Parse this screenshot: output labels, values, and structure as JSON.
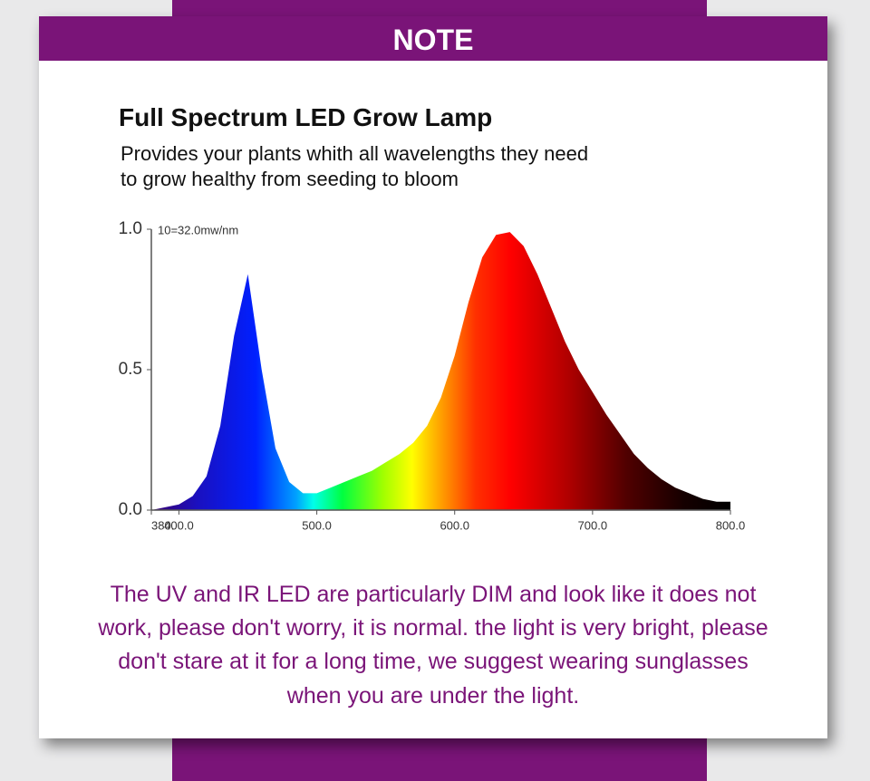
{
  "header": {
    "title": "NOTE"
  },
  "intro": {
    "title": "Full Spectrum LED Grow Lamp",
    "lines": [
      "Provides your plants whith all wavelengths they need",
      "to grow healthy from seeding to bloom"
    ]
  },
  "chart_data": {
    "type": "area",
    "annotation": "10=32.0mw/nm",
    "x": [
      380,
      390,
      400,
      410,
      420,
      430,
      440,
      450,
      460,
      470,
      480,
      490,
      500,
      510,
      520,
      530,
      540,
      550,
      560,
      570,
      580,
      590,
      600,
      610,
      620,
      630,
      640,
      650,
      660,
      670,
      680,
      690,
      700,
      710,
      720,
      730,
      740,
      750,
      760,
      770,
      780,
      790,
      800
    ],
    "values": [
      0,
      0.01,
      0.02,
      0.05,
      0.12,
      0.3,
      0.62,
      0.84,
      0.5,
      0.22,
      0.1,
      0.06,
      0.06,
      0.08,
      0.1,
      0.12,
      0.14,
      0.17,
      0.2,
      0.24,
      0.3,
      0.4,
      0.55,
      0.74,
      0.9,
      0.98,
      0.99,
      0.94,
      0.84,
      0.72,
      0.6,
      0.5,
      0.42,
      0.34,
      0.27,
      0.2,
      0.15,
      0.11,
      0.08,
      0.06,
      0.04,
      0.03,
      0.03
    ],
    "xlim": [
      380,
      800
    ],
    "ylim": [
      0,
      1
    ],
    "xticks": [
      {
        "value": 380,
        "label": "380."
      },
      {
        "value": 400,
        "label": "400.0"
      },
      {
        "value": 500,
        "label": "500.0"
      },
      {
        "value": 600,
        "label": "600.0"
      },
      {
        "value": 700,
        "label": "700.0"
      },
      {
        "value": 800,
        "label": "800.0"
      }
    ],
    "yticks": [
      {
        "value": 0,
        "label": "0.0"
      },
      {
        "value": 0.5,
        "label": "0.5"
      },
      {
        "value": 1,
        "label": "1.0"
      }
    ]
  },
  "note": {
    "lines": [
      "The UV and IR LED are particularly DIM and look like it does not",
      "work, please don't worry, it is normal. the light is very bright, please",
      "don't stare at it for a long time, we suggest wearing sunglasses",
      "when you are under the light."
    ]
  }
}
